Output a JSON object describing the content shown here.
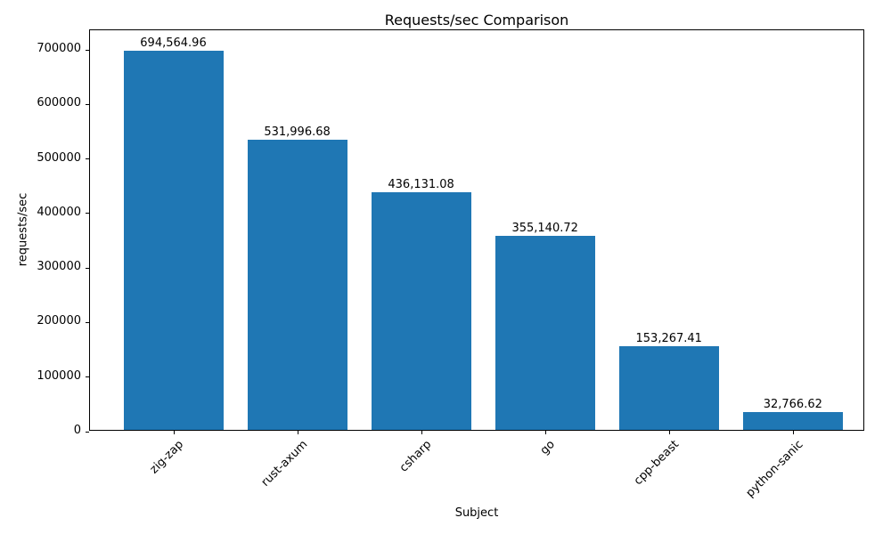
{
  "chart_data": {
    "type": "bar",
    "title": "Requests/sec Comparison",
    "xlabel": "Subject",
    "ylabel": "requests/sec",
    "categories": [
      "zig-zap",
      "rust-axum",
      "csharp",
      "go",
      "cpp-beast",
      "python-sanic"
    ],
    "values": [
      694564.96,
      531996.68,
      436131.08,
      355140.72,
      153267.41,
      32766.62
    ],
    "bar_labels": [
      "694,564.96",
      "531,996.68",
      "436,131.08",
      "355,140.72",
      "153,267.41",
      "32,766.62"
    ],
    "yticks": [
      0,
      100000,
      200000,
      300000,
      400000,
      500000,
      600000,
      700000
    ],
    "ylim": [
      0,
      736000
    ],
    "bar_color": "#1f77b4",
    "grid": false,
    "legend": false,
    "x_tick_rotation_deg": 45
  }
}
